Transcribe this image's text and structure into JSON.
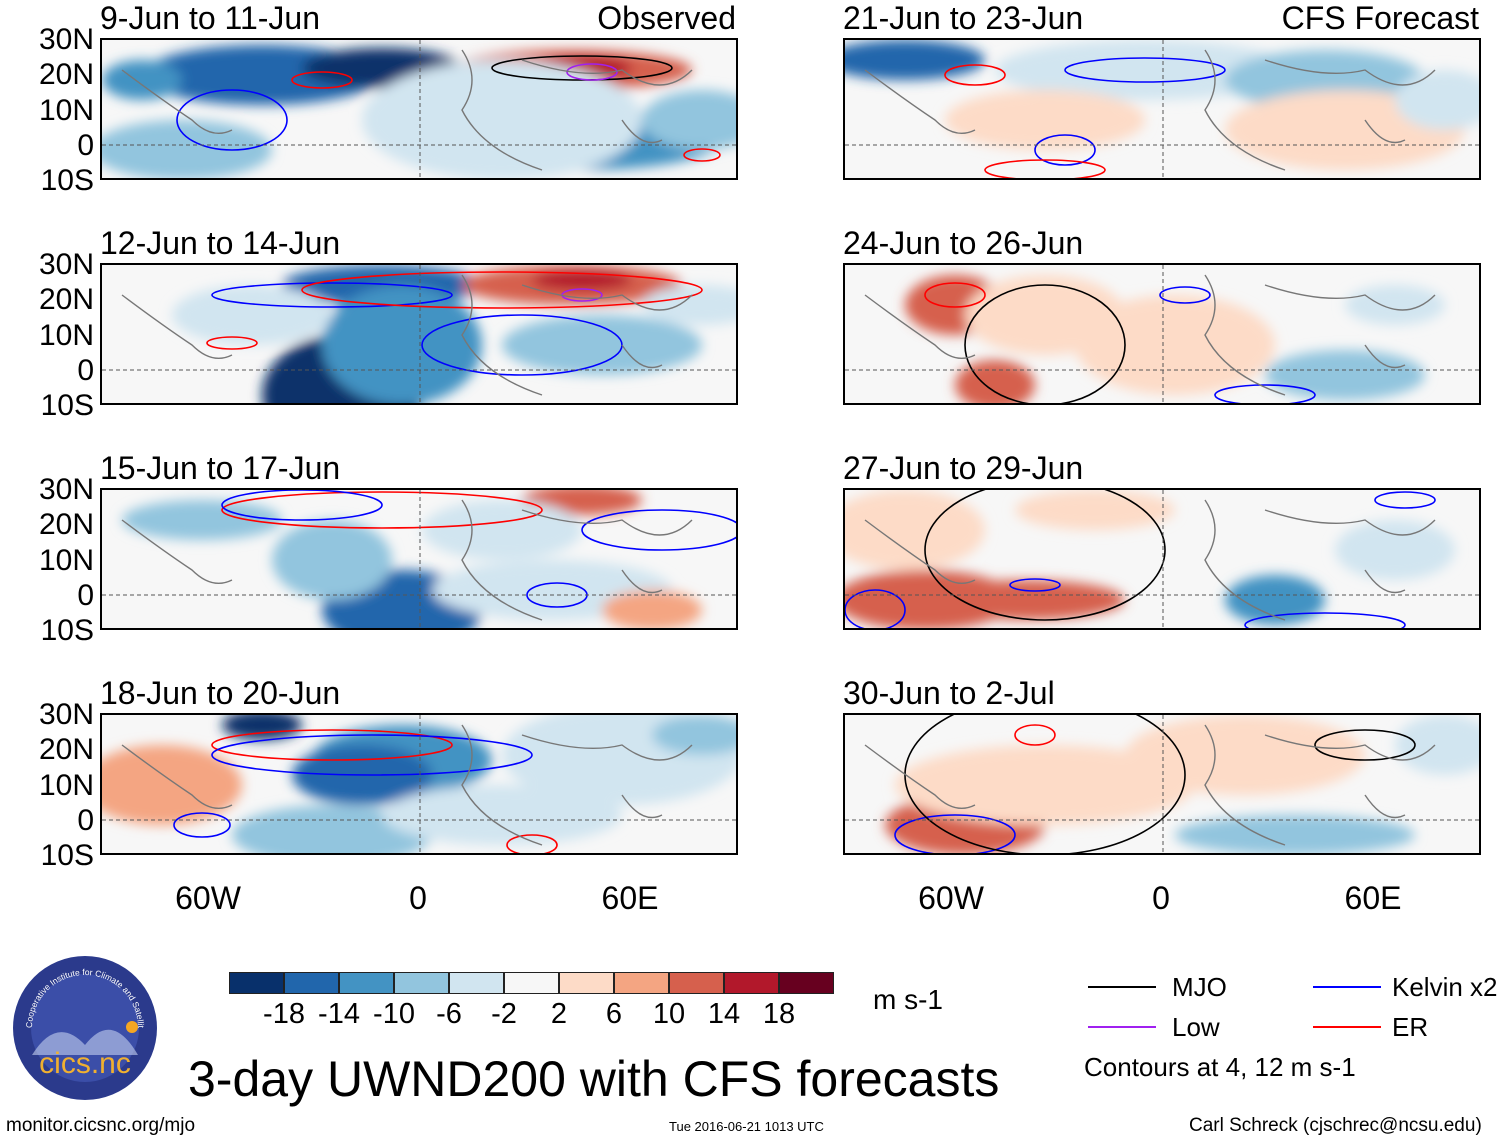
{
  "header": {
    "left_label": "Observed",
    "right_label": "CFS Forecast"
  },
  "panels_left": [
    {
      "title": "9-Jun to 11-Jun"
    },
    {
      "title": "12-Jun to 14-Jun"
    },
    {
      "title": "15-Jun to 17-Jun"
    },
    {
      "title": "18-Jun to 20-Jun"
    }
  ],
  "panels_right": [
    {
      "title": "21-Jun to 23-Jun"
    },
    {
      "title": "24-Jun to 26-Jun"
    },
    {
      "title": "27-Jun to 29-Jun"
    },
    {
      "title": "30-Jun to 2-Jul"
    }
  ],
  "lat_labels": [
    "30N",
    "20N",
    "10N",
    "0",
    "10S"
  ],
  "lon_labels": [
    "60W",
    "0",
    "60E"
  ],
  "colorbar": {
    "colors": [
      "#08306b",
      "#2166ac",
      "#4393c3",
      "#92c5de",
      "#d1e5f0",
      "#f7f7f7",
      "#fddbc7",
      "#f4a582",
      "#d6604d",
      "#b2182b",
      "#67001f"
    ],
    "labels": [
      "-18",
      "-14",
      "-10",
      "-6",
      "-2",
      "2",
      "6",
      "10",
      "14",
      "18"
    ],
    "units": "m s-1"
  },
  "legend": {
    "items": [
      {
        "label": "MJO",
        "color": "#000000"
      },
      {
        "label": "Kelvin x2",
        "color": "#0000ff"
      },
      {
        "label": "Low",
        "color": "#a020f0"
      },
      {
        "label": "ER",
        "color": "#ff0000"
      }
    ],
    "note": "Contours at 4, 12 m s-1"
  },
  "title": "3-day UWND200 with CFS forecasts",
  "footer": {
    "url": "monitor.cicsnc.org/mjo",
    "timestamp": "Tue 2016-06-21 1013 UTC",
    "author": "Carl Schreck (cjschrec@ncsu.edu)"
  },
  "logo": {
    "text": "cics.nc",
    "ring_text": "Cooperative Institute for Climate and Satellites"
  }
}
